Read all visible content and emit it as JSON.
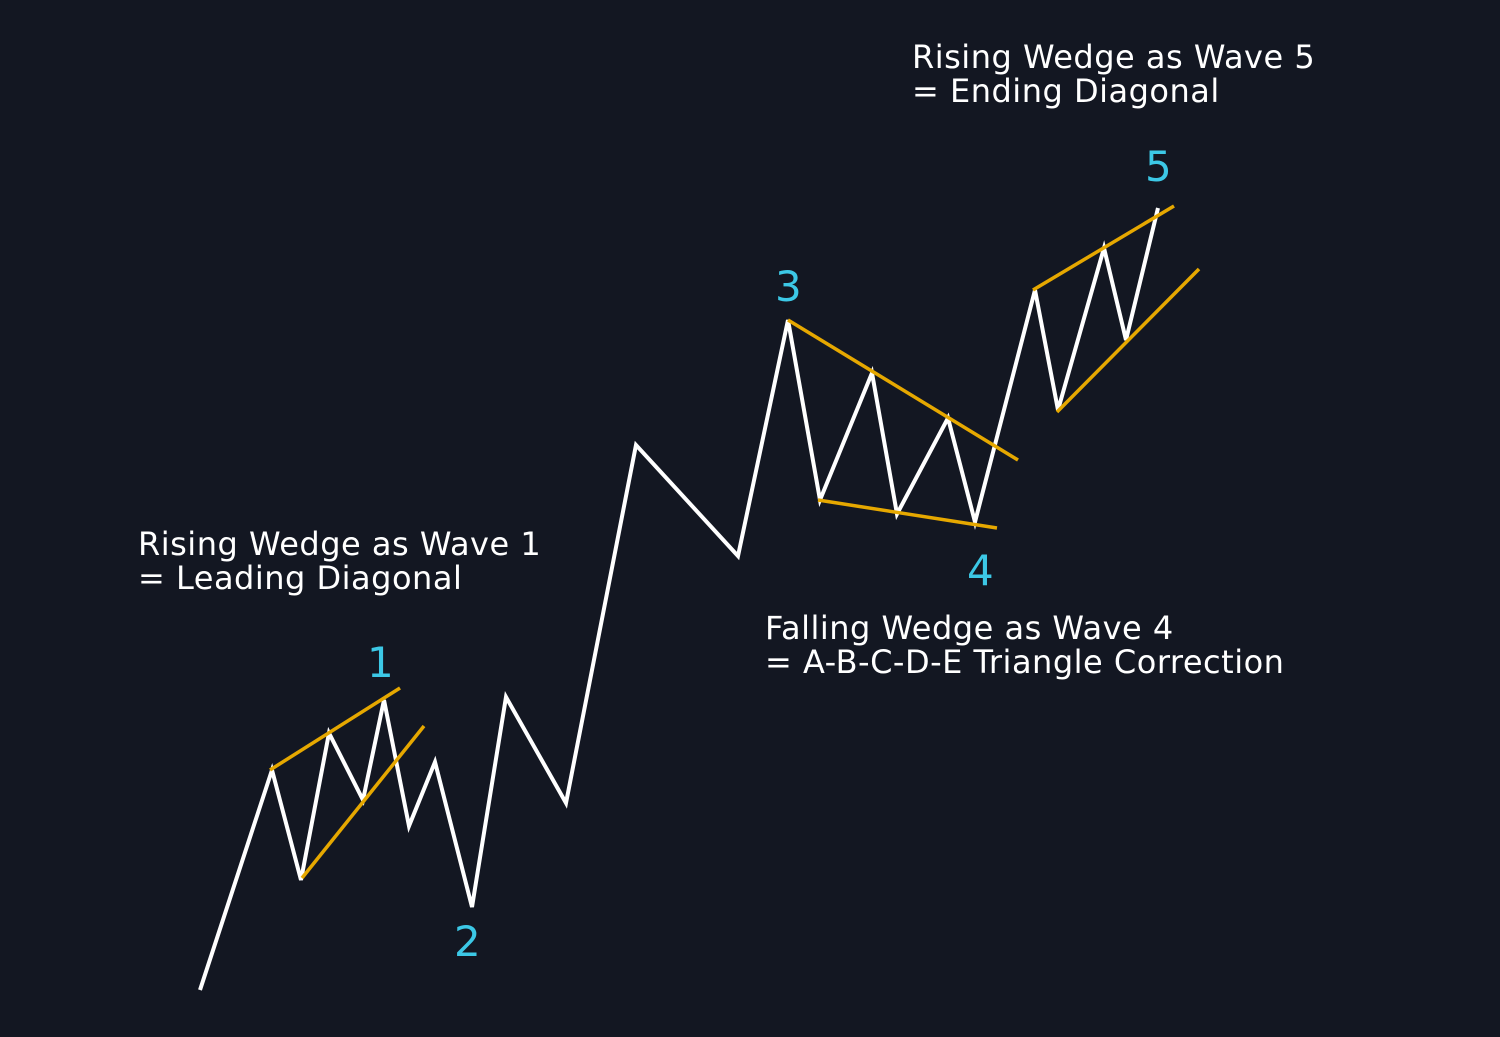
{
  "colors": {
    "background": "#131722",
    "price": "#ffffff",
    "wedge": "#e6a800",
    "wave_label": "#3cc8e6"
  },
  "annotations": {
    "wave1": {
      "line1": "Rising Wedge as Wave 1",
      "line2": "= Leading Diagonal"
    },
    "wave4": {
      "line1": "Falling Wedge as Wave 4",
      "line2": "= A-B-C-D-E Triangle Correction"
    },
    "wave5": {
      "line1": "Rising Wedge as Wave 5",
      "line2": "= Ending Diagonal"
    }
  },
  "wave_labels": [
    "1",
    "2",
    "3",
    "4",
    "5"
  ]
}
